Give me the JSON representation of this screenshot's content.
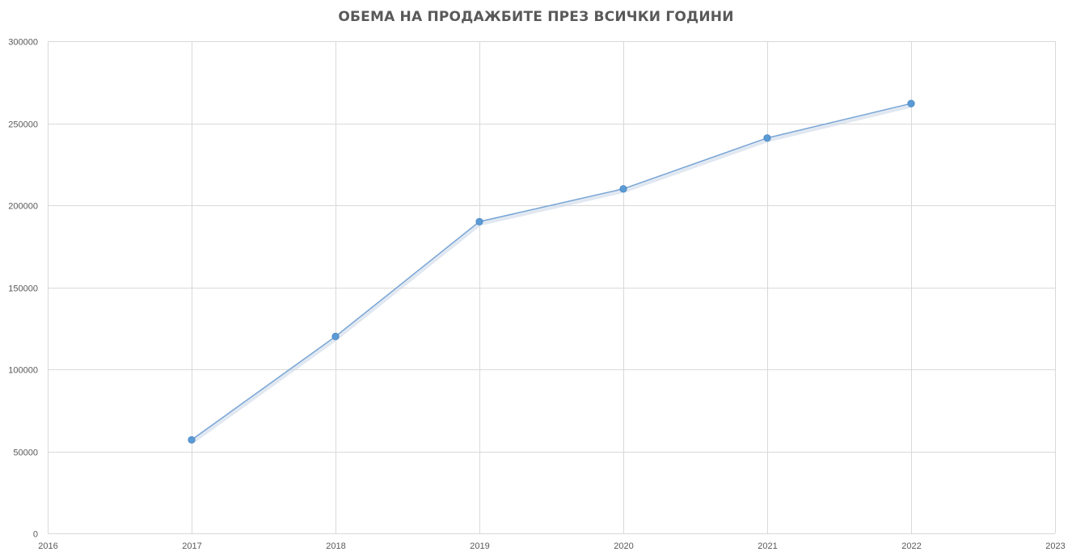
{
  "chart_data": {
    "type": "scatter",
    "title": "ОБЕМА НА ПРОДАЖБИТЕ ПРЕЗ ВСИЧКИ ГОДИНИ",
    "xlabel": "",
    "ylabel": "",
    "xlim": [
      2016,
      2023
    ],
    "ylim": [
      0,
      300000
    ],
    "x_ticks": [
      2016,
      2017,
      2018,
      2019,
      2020,
      2021,
      2022,
      2023
    ],
    "y_ticks": [
      0,
      50000,
      100000,
      150000,
      200000,
      250000,
      300000
    ],
    "grid": true,
    "legend": "none",
    "line_style": "straight lines with markers",
    "series": [
      {
        "color": "#5b9bd5",
        "points": [
          {
            "x": 2017,
            "y": 57000
          },
          {
            "x": 2018,
            "y": 120000
          },
          {
            "x": 2019,
            "y": 190000
          },
          {
            "x": 2020,
            "y": 210000
          },
          {
            "x": 2021,
            "y": 241000
          },
          {
            "x": 2022,
            "y": 262000
          }
        ]
      }
    ]
  }
}
